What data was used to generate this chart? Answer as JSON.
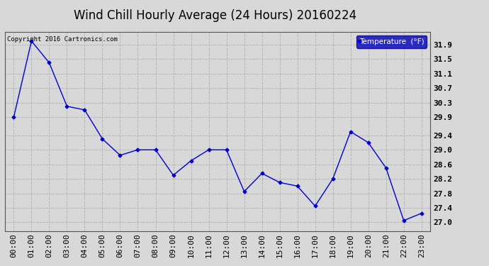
{
  "title": "Wind Chill Hourly Average (24 Hours) 20160224",
  "copyright": "Copyright 2016 Cartronics.com",
  "legend_label": "Temperature  (°F)",
  "x_labels": [
    "00:00",
    "01:00",
    "02:00",
    "03:00",
    "04:00",
    "05:00",
    "06:00",
    "07:00",
    "08:00",
    "09:00",
    "10:00",
    "11:00",
    "12:00",
    "13:00",
    "14:00",
    "15:00",
    "16:00",
    "17:00",
    "18:00",
    "19:00",
    "20:00",
    "21:00",
    "22:00",
    "23:00"
  ],
  "y_values": [
    29.9,
    32.0,
    31.4,
    30.2,
    30.1,
    29.3,
    28.85,
    29.0,
    29.0,
    28.3,
    28.7,
    29.0,
    29.0,
    27.85,
    28.35,
    28.1,
    28.0,
    27.45,
    28.2,
    29.5,
    29.2,
    28.5,
    27.05,
    27.25
  ],
  "y_ticks": [
    27.0,
    27.4,
    27.8,
    28.2,
    28.6,
    29.0,
    29.4,
    29.9,
    30.3,
    30.7,
    31.1,
    31.5,
    31.9
  ],
  "y_tick_labels": [
    "27.0",
    "27.4",
    "27.8",
    "28.2",
    "28.6",
    "29.0",
    "29.4",
    "29.9",
    "30.3",
    "30.7",
    "31.1",
    "31.5",
    "31.9"
  ],
  "ylim": [
    26.75,
    32.25
  ],
  "line_color": "#0000cc",
  "marker": "D",
  "marker_size": 2.5,
  "bg_color": "#d8d8d8",
  "plot_bg_color": "#d8d8d8",
  "grid_color": "#aaaaaa",
  "title_fontsize": 12,
  "tick_fontsize": 8,
  "legend_bg": "#0000bb",
  "legend_text_color": "#ffffff",
  "copyright_fontsize": 6.5
}
